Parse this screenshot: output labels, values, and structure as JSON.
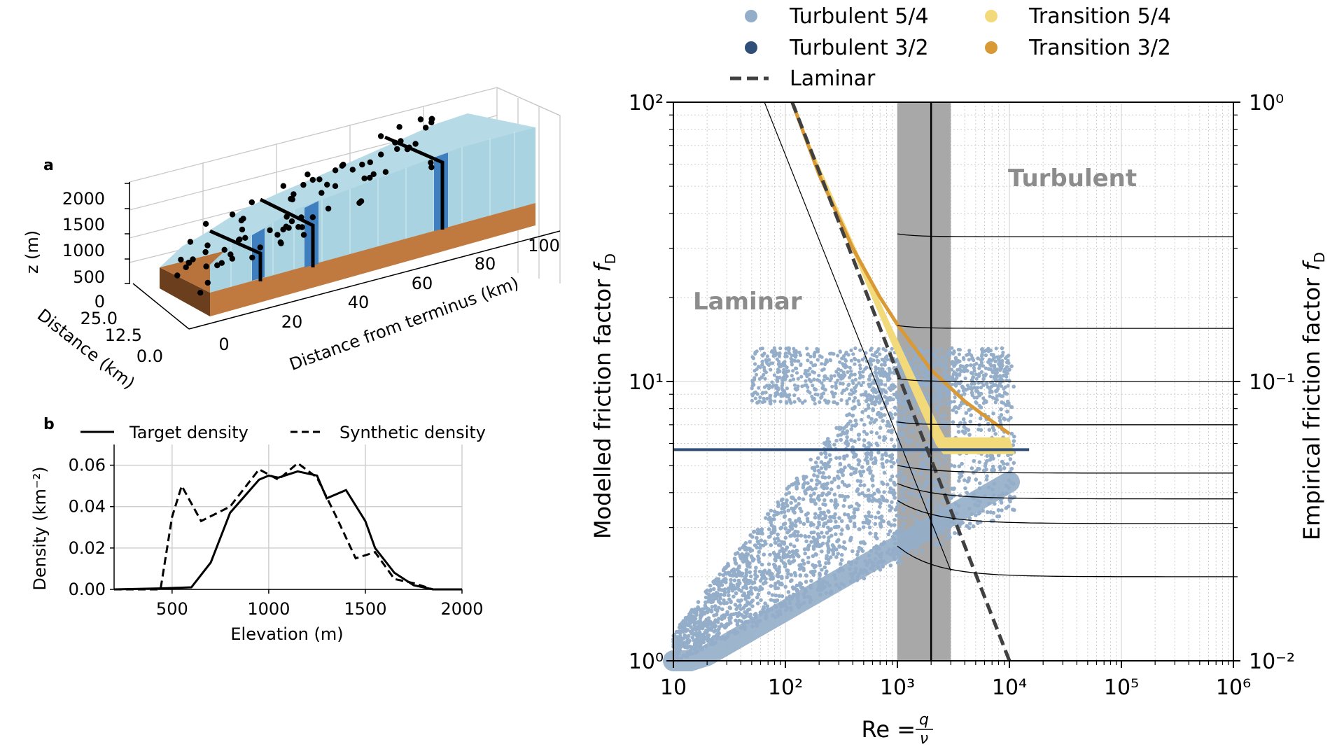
{
  "panel_labels": {
    "a": "a",
    "b": "b"
  },
  "panel_a": {
    "z_label": "z (m)",
    "y_label": "Distance (km)",
    "x_label": "Distance from terminus (km)",
    "z_ticks": [
      "0",
      "500",
      "1000",
      "1500",
      "2000"
    ],
    "y_ticks": [
      "0.0",
      "12.5",
      "25.0"
    ],
    "x_ticks": [
      "0",
      "20",
      "40",
      "60",
      "80",
      "100"
    ],
    "colors": {
      "ice": "#a9d3e0",
      "bed": "#b8733c",
      "band": "#3f7fbf",
      "line": "#000000"
    }
  },
  "legend_b": {
    "solid": "Target density",
    "dashed": "Synthetic density"
  },
  "legend_main": {
    "items": [
      {
        "label": "Turbulent 5/4",
        "color": "#94adc9"
      },
      {
        "label": "Transition 5/4",
        "color": "#f2d97a"
      },
      {
        "label": "Turbulent 3/2",
        "color": "#2f4f78"
      },
      {
        "label": "Transition 3/2",
        "color": "#d99a35"
      },
      {
        "label": "Laminar",
        "color": "#404040"
      }
    ]
  },
  "chart_data": [
    {
      "type": "line",
      "xlabel": "Elevation (m)",
      "ylabel": "Density (km⁻²)",
      "xlim": [
        200,
        2000
      ],
      "ylim": [
        0,
        0.07
      ],
      "xticks": [
        "500",
        "1000",
        "1500",
        "2000"
      ],
      "yticks": [
        "0.00",
        "0.02",
        "0.04",
        "0.06"
      ],
      "grid": true,
      "legend_position": "top",
      "series": [
        {
          "name": "Target density",
          "style": "solid",
          "x": [
            200,
            450,
            600,
            700,
            800,
            950,
            1000,
            1050,
            1150,
            1250,
            1300,
            1400,
            1500,
            1550,
            1650,
            1750,
            1850,
            2000
          ],
          "y": [
            0,
            0.0005,
            0.001,
            0.013,
            0.037,
            0.053,
            0.055,
            0.054,
            0.057,
            0.055,
            0.044,
            0.048,
            0.033,
            0.02,
            0.008,
            0.002,
            0,
            0
          ]
        },
        {
          "name": "Synthetic density",
          "style": "dashed",
          "x": [
            200,
            440,
            500,
            550,
            650,
            800,
            950,
            1050,
            1150,
            1250,
            1350,
            1450,
            1550,
            1650,
            1750,
            1850,
            2000
          ],
          "y": [
            0,
            0,
            0.035,
            0.05,
            0.033,
            0.04,
            0.058,
            0.053,
            0.061,
            0.054,
            0.035,
            0.015,
            0.018,
            0.005,
            0.003,
            0,
            0
          ]
        }
      ]
    },
    {
      "type": "scatter",
      "xlabel": "Re = q/ν",
      "ylabel": "Modelled friction factor f_D",
      "ylabel_right": "Empirical friction factor f_D",
      "x_scale": "log",
      "y_scale": "log",
      "y2_scale": "log",
      "xlim": [
        10,
        1000000
      ],
      "ylim": [
        1,
        100
      ],
      "y2lim": [
        0.01,
        1
      ],
      "xticks": [
        "10",
        "10²",
        "10³",
        "10⁴",
        "10⁵",
        "10⁶"
      ],
      "yticks": [
        "10⁰",
        "10¹",
        "10²"
      ],
      "y2ticks": [
        "10⁻²",
        "10⁻¹",
        "10⁰"
      ],
      "grid": true,
      "legend_position": "top",
      "region_labels": {
        "laminar": "Laminar",
        "turbulent": "Turbulent"
      },
      "transition_band": {
        "x": [
          1000,
          3000
        ],
        "critical_re": 2000
      },
      "series": [
        {
          "name": "Turbulent 5/4",
          "kind": "scatter-cloud",
          "x_range": [
            10,
            15000
          ],
          "y_range": [
            1,
            13
          ]
        },
        {
          "name": "Transition 5/4",
          "kind": "band",
          "x_range": [
            120,
            10000
          ],
          "y_range": [
            5.5,
            100
          ]
        },
        {
          "name": "Turbulent 3/2",
          "kind": "line",
          "x": [
            10,
            15000
          ],
          "y": [
            5.7,
            5.7
          ]
        },
        {
          "name": "Transition 3/2",
          "kind": "line",
          "x": [
            115,
            200,
            400,
            700,
            1000,
            2000,
            4000,
            7000,
            10000
          ],
          "y": [
            100,
            55,
            30,
            20,
            16,
            11,
            8.5,
            7.2,
            6.5
          ]
        },
        {
          "name": "Laminar",
          "kind": "dashed-line",
          "x": [
            115,
            10000
          ],
          "y": [
            100,
            1
          ]
        }
      ],
      "empirical_curves_asymptotes_y2": [
        0.33,
        0.155,
        0.1,
        0.07,
        0.047,
        0.038,
        0.031,
        0.02
      ]
    }
  ]
}
